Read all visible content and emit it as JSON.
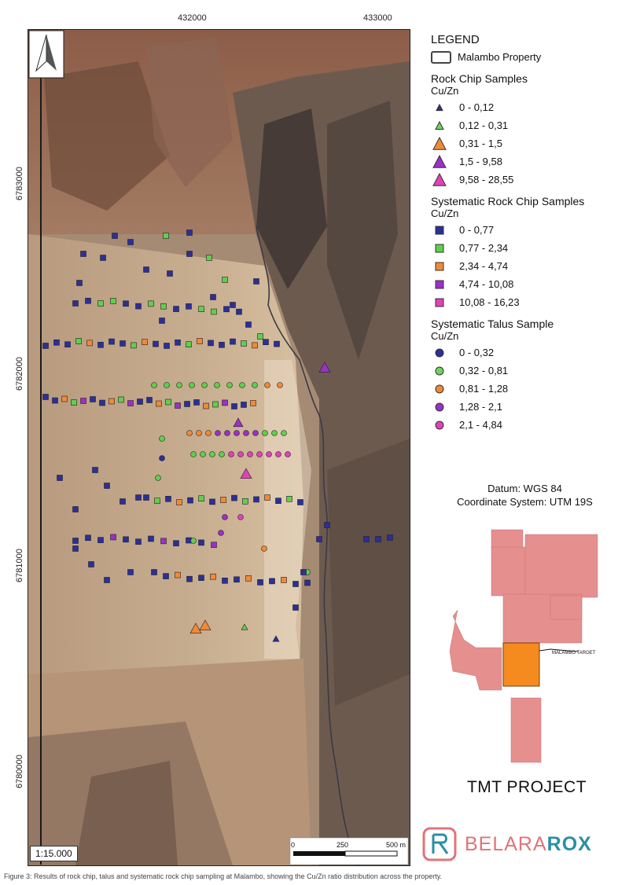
{
  "map": {
    "x_ticks": [
      "432000",
      "433000"
    ],
    "y_ticks": [
      "6783000",
      "6782000",
      "6781000",
      "6780000"
    ],
    "scale_ratio": "1:15.000",
    "scale_bar": {
      "labels": [
        "0",
        "250",
        "500 m"
      ]
    }
  },
  "legend": {
    "title": "LEGEND",
    "property_label": "Malambo Property",
    "groups": [
      {
        "heading": "Rock Chip Samples",
        "sub": "Cu/Zn",
        "shape": "triangle",
        "items": [
          {
            "label": "0 - 0,12",
            "color": "#2b2f9a",
            "size": "xs"
          },
          {
            "label": "0,12 - 0,31",
            "color": "#6fd45e",
            "size": "s"
          },
          {
            "label": "0,31 - 1,5",
            "color": "#f08a38",
            "size": "l"
          },
          {
            "label": "1,5 - 9,58",
            "color": "#9b30c9",
            "size": "l"
          },
          {
            "label": "9,58 - 28,55",
            "color": "#e042b8",
            "size": "l"
          }
        ]
      },
      {
        "heading": "Systematic Rock Chip Samples",
        "sub": "Cu/Zn",
        "shape": "square",
        "items": [
          {
            "label": "0 - 0,77",
            "color": "#2b2f9a"
          },
          {
            "label": "0,77 - 2,34",
            "color": "#5fcf4e"
          },
          {
            "label": "2,34 - 4,74",
            "color": "#f08a38"
          },
          {
            "label": "4,74 - 10,08",
            "color": "#9b30c9"
          },
          {
            "label": "10,08 - 16,23",
            "color": "#e042b8"
          }
        ]
      },
      {
        "heading": "Systematic Talus Sample",
        "sub": "Cu/Zn",
        "shape": "circle",
        "items": [
          {
            "label": "0 - 0,32",
            "color": "#2b2f9a"
          },
          {
            "label": "0,32 - 0,81",
            "color": "#6fd45e"
          },
          {
            "label": "0,81 - 1,28",
            "color": "#f08a38"
          },
          {
            "label": "1,28 - 2,1",
            "color": "#9b30c9"
          },
          {
            "label": "2,1 - 4,84",
            "color": "#e042b8"
          }
        ]
      }
    ]
  },
  "datum": {
    "line1": "Datum: WGS 84",
    "line2": "Coordinate System: UTM 19S"
  },
  "inset": {
    "target_label": "MALAMBO TARGET",
    "property_color": "#e58f8f",
    "target_color": "#f58a1f"
  },
  "project_title": "TMT PROJECT",
  "logo": {
    "part1": "BELARA",
    "part2": "ROX"
  },
  "caption": "Figure 3: Results of rock chip, talus and systematic rock chip sampling at Malambo, showing the Cu/Zn ratio distribution across the property."
}
